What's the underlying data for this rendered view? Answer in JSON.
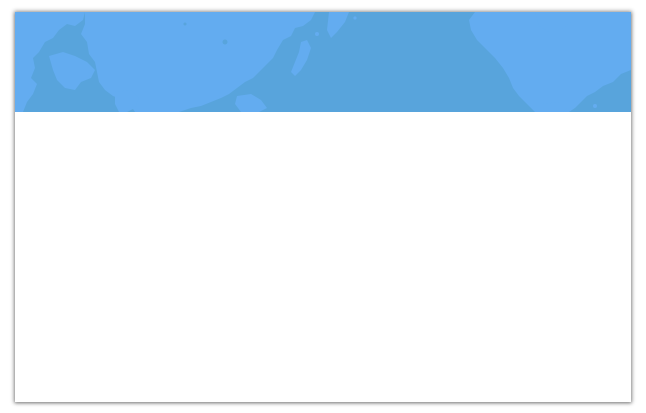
{
  "banner": {
    "icon": "world-map-icon",
    "ocean_color": "#58a4dc",
    "land_color": "#63acf0"
  },
  "card": {
    "background_color": "#ffffff"
  }
}
